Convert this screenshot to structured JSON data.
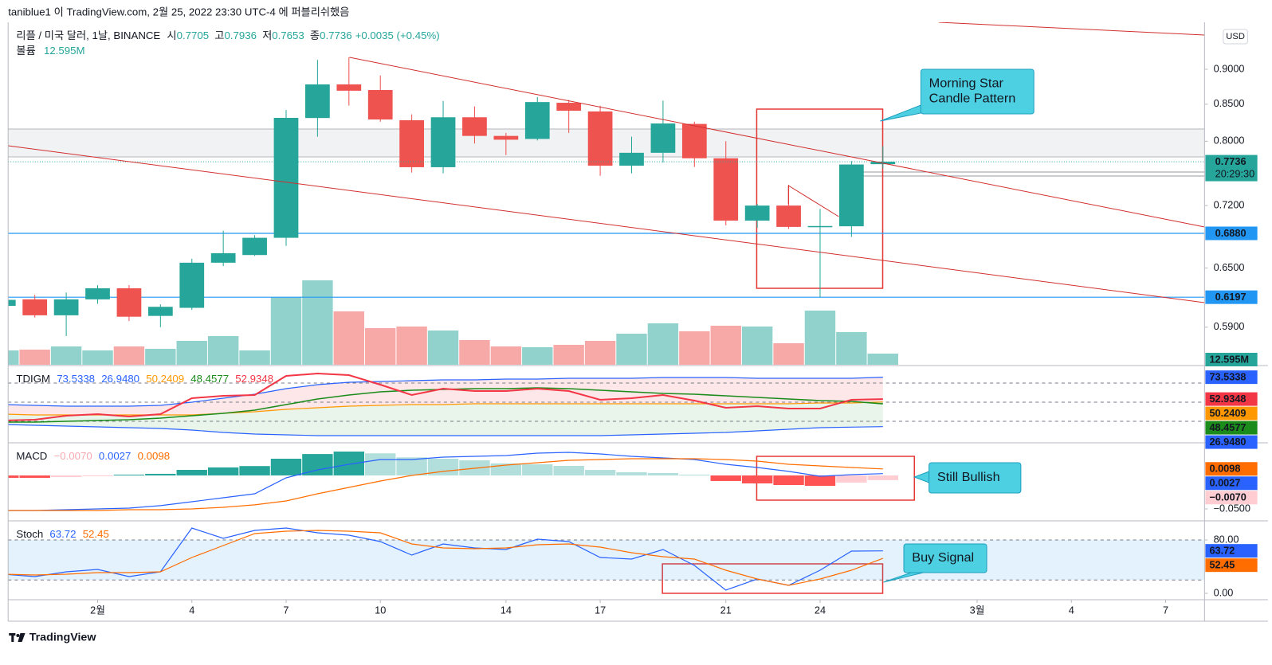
{
  "chart_data": [
    {
      "type": "candlestick",
      "published": "taniblue1 이 TradingView.com, 2월 25, 2022 23:30 UTC-4 에 퍼블리쉬했음",
      "symbol": "리플 / 미국 달러, 1날, BINANCE",
      "ohlc_labels": [
        "시",
        "고",
        "저",
        "종"
      ],
      "change": "+0.0035 (+0.45%)",
      "currency": "USD",
      "countdown": "20:29:30",
      "footer": "TradingView",
      "up_color": "#26a69a",
      "down_color": "#ef5350",
      "x": [
        29,
        30,
        31,
        32,
        33,
        34,
        35,
        36,
        37,
        38,
        39,
        40,
        41,
        42,
        43,
        44,
        45,
        46,
        47,
        48,
        49,
        50,
        51,
        52,
        53,
        54,
        55,
        56,
        57
      ],
      "open": [
        0.611,
        0.6175,
        0.6016,
        0.6175,
        0.6288,
        0.601,
        0.609,
        0.6557,
        0.664,
        0.683,
        0.831,
        0.878,
        0.87,
        0.828,
        0.7667,
        0.832,
        0.807,
        0.803,
        0.852,
        0.84,
        0.7686,
        0.785,
        0.823,
        0.778,
        0.7025,
        0.72,
        0.6953,
        0.696,
        0.7705
      ],
      "high": [
        0.619,
        0.6221,
        0.6245,
        0.632,
        0.632,
        0.6125,
        0.66,
        0.691,
        0.686,
        0.842,
        0.914,
        0.918,
        0.891,
        0.836,
        0.8545,
        0.847,
        0.811,
        0.86,
        0.856,
        0.848,
        0.806,
        0.855,
        0.826,
        0.8,
        0.722,
        0.745,
        0.716,
        0.7745,
        0.7936
      ],
      "low": [
        0.609,
        0.5994,
        0.5815,
        0.613,
        0.596,
        0.59,
        0.607,
        0.652,
        0.663,
        0.674,
        0.806,
        0.848,
        0.826,
        0.76,
        0.759,
        0.797,
        0.782,
        0.801,
        0.811,
        0.756,
        0.759,
        0.7725,
        0.767,
        0.697,
        0.694,
        0.693,
        0.6197,
        0.684,
        0.7653
      ],
      "close": [
        0.617,
        0.6016,
        0.6175,
        0.6288,
        0.6002,
        0.61,
        0.6557,
        0.666,
        0.683,
        0.8312,
        0.878,
        0.869,
        0.829,
        0.7667,
        0.832,
        0.807,
        0.802,
        0.853,
        0.841,
        0.7686,
        0.785,
        0.8236,
        0.778,
        0.7025,
        0.72,
        0.6953,
        0.6963,
        0.7701,
        0.7736
      ],
      "xlim": [
        29.15,
        67.24
      ],
      "xticks": [
        {
          "value": 32,
          "label": "2월"
        },
        {
          "value": 35,
          "label": "4"
        },
        {
          "value": 38,
          "label": "7"
        },
        {
          "value": 41,
          "label": "10"
        },
        {
          "value": 45,
          "label": "14"
        },
        {
          "value": 48,
          "label": "17"
        },
        {
          "value": 52,
          "label": "21"
        },
        {
          "value": 55,
          "label": "24"
        },
        {
          "value": 60,
          "label": "3월"
        },
        {
          "value": 63,
          "label": "4"
        },
        {
          "value": 66,
          "label": "7"
        }
      ],
      "log": true,
      "ylim": [
        0.5548,
        0.972
      ],
      "yticks": [
        {
          "value": 0.9,
          "label": "0.9000"
        },
        {
          "value": 0.85,
          "label": "0.8500"
        },
        {
          "value": 0.8,
          "label": "0.8000"
        },
        {
          "value": 0.72,
          "label": "0.7200"
        },
        {
          "value": 0.65,
          "label": "0.6500"
        },
        {
          "value": 0.59,
          "label": "0.5900"
        }
      ],
      "hlines": [
        {
          "value": 0.688,
          "label": "0.6880"
        },
        {
          "value": 0.6197,
          "label": "0.6197"
        }
      ],
      "hline_color": "#2196f3",
      "volume": {
        "name": "볼륨",
        "values": [
          16.2,
          17.1,
          20.7,
          16.2,
          20.7,
          18,
          27,
          32.4,
          16.2,
          76.5,
          95.4,
          60.3,
          41.4,
          43.2,
          38.7,
          27.9,
          20.7,
          19.8,
          22.5,
          27,
          35.1,
          46.8,
          37.8,
          44.1,
          43.2,
          24.3,
          61.2,
          36.9,
          12.595
        ],
        "value_labels": [
          null,
          null,
          null,
          null,
          null,
          null,
          null,
          null,
          null,
          null,
          null,
          null,
          null,
          null,
          null,
          null,
          null,
          null,
          null,
          null,
          null,
          null,
          null,
          null,
          null,
          null,
          null,
          null,
          "12.595M"
        ],
        "ylim": [
          0,
          387
        ]
      },
      "annotations": [
        [
          "Morning Star",
          "Candle Pattern"
        ],
        [
          "Still Bullish"
        ],
        [
          "Buy Signal"
        ]
      ]
    },
    {
      "type": "line",
      "name": "TDIGM",
      "ylim": [
        12.5,
        83.75
      ],
      "levels": [
        68,
        50,
        32
      ],
      "fills": [
        [
          0,
          2,
          "#f23645"
        ],
        [
          2,
          1,
          "#4caf50"
        ]
      ],
      "series": [
        {
          "color": "#2962ff",
          "values": [
            47.75,
            47,
            46.25,
            46.25,
            46.25,
            47,
            50,
            53.75,
            57.5,
            62.75,
            66.5,
            68.75,
            69.5,
            70.25,
            71,
            71,
            71.75,
            71.75,
            72.5,
            72.5,
            72.5,
            73.25,
            73.25,
            73.25,
            72.5,
            72.5,
            72.5,
            72.5,
            73.5338
          ]
        },
        {
          "color": "#2962ff",
          "values": [
            29,
            28.25,
            27.5,
            26.75,
            26,
            25.25,
            23.75,
            21.5,
            20,
            19.25,
            18.5,
            18.5,
            18.5,
            18.5,
            18.5,
            18.5,
            18.5,
            18.5,
            18.5,
            18.5,
            19.25,
            20,
            20.75,
            21.5,
            23,
            24.5,
            26,
            26.5,
            26.948
          ],
          "value_labels": [
            null,
            null,
            null,
            null,
            null,
            null,
            null,
            null,
            null,
            null,
            null,
            null,
            null,
            null,
            null,
            null,
            null,
            null,
            null,
            null,
            null,
            null,
            null,
            null,
            null,
            null,
            null,
            null,
            "26.9480"
          ]
        },
        {
          "color": "#ff9800",
          "values": [
            38.75,
            38,
            38,
            38,
            38,
            38,
            38,
            39.5,
            41,
            43.25,
            44.75,
            46.25,
            47,
            47.75,
            47.75,
            48.5,
            48.5,
            48.5,
            48.5,
            48.5,
            48.5,
            48.5,
            48.5,
            48.5,
            48.5,
            48.5,
            49.25,
            49.25,
            50.2409
          ]
        },
        {
          "color": "#1b8c1b",
          "values": [
            31.25,
            31.25,
            32,
            32.75,
            33.5,
            35,
            37.25,
            39.5,
            42.5,
            47.75,
            53,
            56.75,
            59.75,
            61.25,
            62,
            62.75,
            62.75,
            63.5,
            62.75,
            61.25,
            59.75,
            58.25,
            57.5,
            56,
            54.5,
            53,
            51.5,
            50.75,
            48.4577
          ]
        },
        {
          "color": "#f23645",
          "values": [
            32.75,
            33.5,
            37.25,
            38.75,
            36.5,
            38.75,
            53.75,
            56,
            56.75,
            74.75,
            77,
            75.5,
            66.5,
            56.75,
            62.75,
            60.5,
            60.5,
            62.75,
            60.5,
            52.25,
            53.75,
            56.75,
            51.5,
            44.75,
            46.25,
            44,
            44,
            52.25,
            52.9348
          ]
        }
      ]
    },
    {
      "type": "macd",
      "name": "MACD",
      "ylim": [
        -0.0655,
        0.0476
      ],
      "yticks": [
        {
          "value": -0.05,
          "label": "−0.0500"
        }
      ],
      "series": [
        {
          "style": "histogram",
          "color": "#ffcdd2",
          "bar_colors": [
            "#26a69a",
            "#b2dfdb",
            "#ffcdd2",
            "#ff5252"
          ],
          "values": [
            -0.0036,
            -0.0036,
            -0.0024,
            -0.0006,
            0.0012,
            0.0024,
            0.0083,
            0.012,
            0.014,
            0.025,
            0.032,
            0.0357,
            0.033,
            0.027,
            0.025,
            0.0226,
            0.018,
            0.0167,
            0.0143,
            0.0083,
            0.0048,
            0.0036,
            0.0012,
            -0.0083,
            -0.0119,
            -0.0143,
            -0.0155,
            -0.0107,
            -0.007
          ],
          "value_labels": [
            null,
            null,
            null,
            null,
            null,
            null,
            null,
            null,
            null,
            null,
            null,
            null,
            null,
            null,
            null,
            null,
            null,
            null,
            null,
            null,
            null,
            null,
            null,
            null,
            null,
            null,
            null,
            null,
            "−0.0070"
          ]
        },
        {
          "color": "#2962ff",
          "values": [
            -0.0524,
            -0.0524,
            -0.0512,
            -0.05,
            -0.0488,
            -0.0452,
            -0.0393,
            -0.0333,
            -0.0274,
            -0.0036,
            0.0083,
            0.0167,
            0.0238,
            0.0238,
            0.0274,
            0.0286,
            0.0298,
            0.0333,
            0.0345,
            0.0321,
            0.0286,
            0.0262,
            0.0238,
            0.0167,
            0.0119,
            0.006,
            -0.0012,
            0.0012,
            0.0027
          ]
        },
        {
          "color": "#ff6d00",
          "values": [
            -0.0524,
            -0.0524,
            -0.0524,
            -0.0524,
            -0.0512,
            -0.0512,
            -0.05,
            -0.0476,
            -0.044,
            -0.0381,
            -0.0274,
            -0.0179,
            -0.0083,
            0,
            0.006,
            0.0107,
            0.0155,
            0.019,
            0.0226,
            0.0238,
            0.025,
            0.025,
            0.025,
            0.0238,
            0.0214,
            0.0167,
            0.0143,
            0.0119,
            0.0098
          ]
        }
      ]
    },
    {
      "type": "line",
      "name": "Stoch",
      "ylim": [
        -8.36,
        107.5
      ],
      "yticks": [
        {
          "value": 80,
          "label": "80.00"
        },
        {
          "value": 0,
          "label": "0.00"
        }
      ],
      "levels": [
        80,
        20
      ],
      "band": [
        20,
        80
      ],
      "band_color": "#2196f3",
      "series": [
        {
          "color": "#2962ff",
          "values": [
            28.66,
            25.07,
            32.24,
            35.82,
            25.07,
            32.24,
            97.91,
            82.39,
            94.33,
            97.91,
            90.75,
            87.16,
            77.61,
            57.31,
            74.03,
            68.06,
            65.67,
            81.19,
            77.61,
            53.73,
            51.34,
            65.67,
            41.79,
            4.78,
            21.49,
            11.94,
            34.63,
            63.28,
            63.72
          ]
        },
        {
          "color": "#ff6d00",
          "values": [
            28.66,
            27.46,
            28.66,
            31.04,
            31.04,
            32.24,
            53.73,
            71.64,
            89.55,
            93.13,
            94.33,
            93.13,
            90.75,
            74.03,
            68.06,
            66.87,
            68.06,
            72.84,
            74.03,
            69.25,
            60.9,
            54.93,
            51.34,
            34.63,
            21.49,
            11.94,
            21.49,
            34.63,
            52.45
          ]
        }
      ]
    }
  ]
}
